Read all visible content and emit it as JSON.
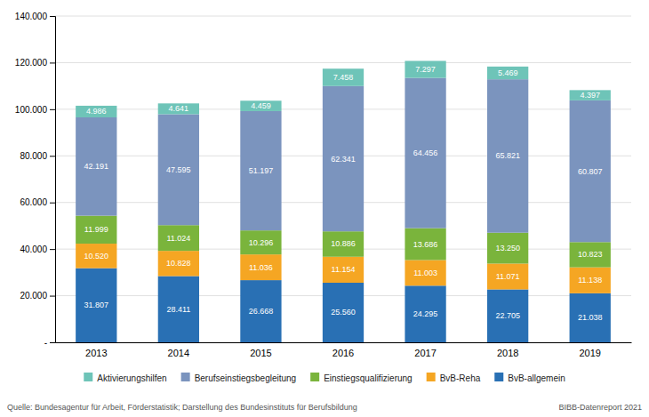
{
  "chart_data": {
    "type": "bar",
    "stacked": true,
    "data_labels": true,
    "grid": true,
    "categories": [
      "2013",
      "2014",
      "2015",
      "2016",
      "2017",
      "2018",
      "2019"
    ],
    "series": [
      {
        "name": "BvB-allgemein",
        "color": "#2970b4",
        "values": [
          31807,
          28411,
          26668,
          25560,
          24295,
          22705,
          21038
        ],
        "value_labels": [
          "31.807",
          "28.411",
          "26.668",
          "25.560",
          "24.295",
          "22.705",
          "21.038"
        ]
      },
      {
        "name": "BvB-Reha",
        "color": "#f5a623",
        "values": [
          10520,
          10828,
          11036,
          11154,
          11003,
          11071,
          11138
        ],
        "value_labels": [
          "10.520",
          "10.828",
          "11.036",
          "11.154",
          "11.003",
          "11.071",
          "11.138"
        ]
      },
      {
        "name": "Einstiegsqualifizierung",
        "color": "#7ab43c",
        "values": [
          11999,
          11024,
          10296,
          10886,
          13686,
          13250,
          10823
        ],
        "value_labels": [
          "11.999",
          "11.024",
          "10.296",
          "10.886",
          "13.686",
          "13.250",
          "10.823"
        ]
      },
      {
        "name": "Berufseinstiegsbegleitung",
        "color": "#7b94be",
        "values": [
          42191,
          47595,
          51197,
          62341,
          64456,
          65821,
          60807
        ],
        "value_labels": [
          "42.191",
          "47.595",
          "51.197",
          "62.341",
          "64.456",
          "65.821",
          "60.807"
        ]
      },
      {
        "name": "Aktivierungshilfen",
        "color": "#6ec4b8",
        "values": [
          4986,
          4641,
          4459,
          7458,
          7297,
          5469,
          4397
        ],
        "value_labels": [
          "4.986",
          "4.641",
          "4.459",
          "7.458",
          "7.297",
          "5.469",
          "4.397"
        ]
      }
    ],
    "ylim": [
      0,
      140000
    ],
    "yticks": [
      {
        "value": 0,
        "label": "-"
      },
      {
        "value": 20000,
        "label": "20.000"
      },
      {
        "value": 40000,
        "label": "40.000"
      },
      {
        "value": 60000,
        "label": "60.000"
      },
      {
        "value": 80000,
        "label": "80.000"
      },
      {
        "value": 100000,
        "label": "100.000"
      },
      {
        "value": 120000,
        "label": "120.000"
      },
      {
        "value": 140000,
        "label": "140.000"
      }
    ],
    "annotations": [
      "Quelle: Bundesagentur für Arbeit, Förderstatistik; Darstellung des Bundesinstituts für Berufsbildung",
      "BIBB-Datenreport 2021"
    ]
  }
}
